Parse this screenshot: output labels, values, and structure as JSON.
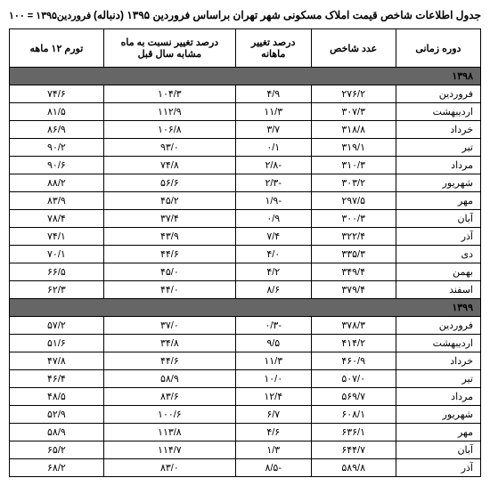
{
  "title": "جدول اطلاعات شاخص قیمت املاک مسکونی شهر تهران براساس فروردین ۱۳۹۵ (دنباله)",
  "subtitle": "فروردین۱۳۹۵ = ۱۰۰",
  "columns": {
    "period": "دوره زمانی",
    "index": "عدد شاخص",
    "monthly": "درصد تغییر ماهانه",
    "yearly": "درصد تغییر نسبت به ماه مشابه سال قبل",
    "twelve": "تورم ۱۲ ماهه"
  },
  "years": [
    {
      "label": "۱۳۹۸",
      "rows": [
        {
          "month": "فروردین",
          "index": "۲۷۶/۲",
          "monthly": "۴/۹",
          "yearly": "۱۰۴/۳",
          "twelve": "۷۴/۶"
        },
        {
          "month": "اردیبهشت",
          "index": "۳۰۷/۳",
          "monthly": "۱۱/۳",
          "yearly": "۱۱۲/۹",
          "twelve": "۸۱/۵"
        },
        {
          "month": "خرداد",
          "index": "۳۱۸/۸",
          "monthly": "۳/۷",
          "yearly": "۱۰۶/۸",
          "twelve": "۸۶/۹"
        },
        {
          "month": "تیر",
          "index": "۳۱۹/۱",
          "monthly": "۰/۱",
          "yearly": "۹۳/۰",
          "twelve": "۹۰/۲"
        },
        {
          "month": "مرداد",
          "index": "۳۱۰/۳",
          "monthly": "-۲/۸",
          "yearly": "۷۴/۸",
          "twelve": "۹۰/۶"
        },
        {
          "month": "شهریور",
          "index": "۳۰۳/۲",
          "monthly": "-۲/۳",
          "yearly": "۵۶/۶",
          "twelve": "۸۸/۲"
        },
        {
          "month": "مهر",
          "index": "۲۹۷/۵",
          "monthly": "-۱/۹",
          "yearly": "۴۵/۲",
          "twelve": "۸۳/۹"
        },
        {
          "month": "آبان",
          "index": "۳۰۰/۳",
          "monthly": "۰/۹",
          "yearly": "۳۷/۴",
          "twelve": "۷۸/۴"
        },
        {
          "month": "آذر",
          "index": "۳۲۲/۴",
          "monthly": "۷/۴",
          "yearly": "۴۳/۹",
          "twelve": "۷۴/۱"
        },
        {
          "month": "دی",
          "index": "۳۳۵/۳",
          "monthly": "۴/۰",
          "yearly": "۴۴/۶",
          "twelve": "۷۰/۱"
        },
        {
          "month": "بهمن",
          "index": "۳۴۹/۴",
          "monthly": "۴/۲",
          "yearly": "۴۵/۰",
          "twelve": "۶۶/۵"
        },
        {
          "month": "اسفند",
          "index": "۳۷۹/۴",
          "monthly": "۸/۶",
          "yearly": "۴۴/۰",
          "twelve": "۶۲/۳"
        }
      ]
    },
    {
      "label": "۱۳۹۹",
      "rows": [
        {
          "month": "فروردین",
          "index": "۳۷۸/۳",
          "monthly": "-۰/۳",
          "yearly": "۳۷/۰",
          "twelve": "۵۷/۲"
        },
        {
          "month": "اردیبهشت",
          "index": "۴۱۴/۲",
          "monthly": "۹/۵",
          "yearly": "۳۴/۸",
          "twelve": "۵۱/۶"
        },
        {
          "month": "خرداد",
          "index": "۴۶۰/۹",
          "monthly": "۱۱/۳",
          "yearly": "۴۴/۶",
          "twelve": "۴۷/۸"
        },
        {
          "month": "تیر",
          "index": "۵۰۷/۰",
          "monthly": "۱۰/۰",
          "yearly": "۵۸/۹",
          "twelve": "۴۶/۴"
        },
        {
          "month": "مرداد",
          "index": "۵۶۹/۷",
          "monthly": "۱۲/۴",
          "yearly": "۸۳/۶",
          "twelve": "۴۸/۵"
        },
        {
          "month": "شهریور",
          "index": "۶۰۸/۱",
          "monthly": "۶/۷",
          "yearly": "۱۰۰/۶",
          "twelve": "۵۲/۹"
        },
        {
          "month": "مهر",
          "index": "۶۳۶/۱",
          "monthly": "۴/۶",
          "yearly": "۱۱۳/۸",
          "twelve": "۵۸/۹"
        },
        {
          "month": "آبان",
          "index": "۶۴۴/۷",
          "monthly": "۱/۳",
          "yearly": "۱۱۴/۷",
          "twelve": "۶۵/۲"
        },
        {
          "month": "آذر",
          "index": "۵۸۹/۸",
          "monthly": "-۸/۵",
          "yearly": "۸۳/۰",
          "twelve": "۶۸/۲"
        }
      ]
    }
  ]
}
